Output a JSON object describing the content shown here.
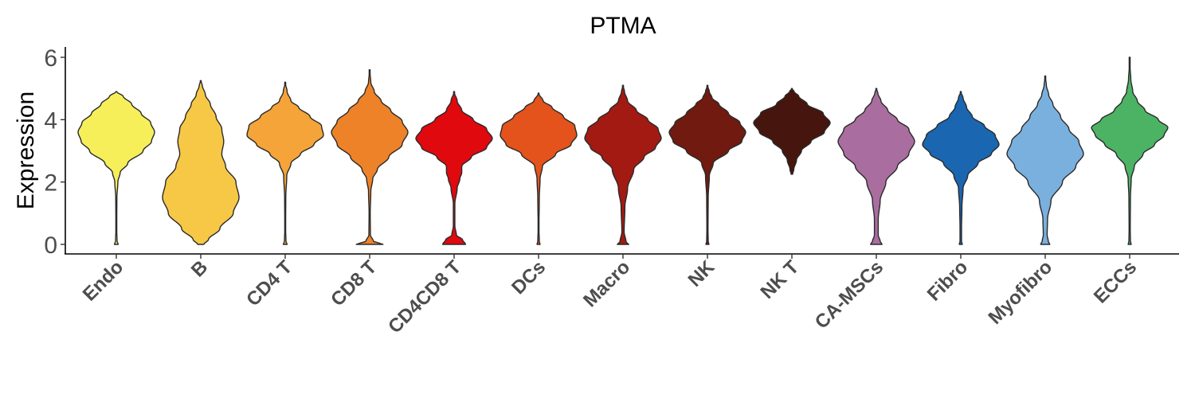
{
  "chart_data": {
    "type": "violin",
    "title": "PTMA",
    "xlabel": "",
    "ylabel": "Expression",
    "ylim": [
      -0.3,
      6.3
    ],
    "yticks": [
      0,
      2,
      4,
      6
    ],
    "grid": false,
    "legend": "none",
    "categories": [
      "Endo",
      "B",
      "CD4 T",
      "CD8 T",
      "CD4CD8 T",
      "DCs",
      "Macro",
      "NK",
      "NK T",
      "CA-MSCs",
      "Fibro",
      "Myofibro",
      "ECCs"
    ],
    "colors": [
      "#F7EF5A",
      "#F7C846",
      "#F4A438",
      "#EE8228",
      "#DF090E",
      "#E3531B",
      "#A21A12",
      "#701A10",
      "#46150D",
      "#A96E9F",
      "#1A66B0",
      "#7AB0DE",
      "#4CB365"
    ],
    "distributions": [
      {
        "name": "Endo",
        "min": 0.0,
        "max": 4.9,
        "profile": [
          [
            0,
            0.05
          ],
          [
            0.1,
            0.02
          ],
          [
            0.5,
            0.01
          ],
          [
            1.5,
            0.015
          ],
          [
            2,
            0.04
          ],
          [
            2.3,
            0.1
          ],
          [
            2.6,
            0.3
          ],
          [
            3.0,
            0.7
          ],
          [
            3.3,
            0.92
          ],
          [
            3.6,
            1.0
          ],
          [
            3.9,
            0.9
          ],
          [
            4.2,
            0.65
          ],
          [
            4.5,
            0.4
          ],
          [
            4.75,
            0.18
          ],
          [
            4.9,
            0
          ]
        ]
      },
      {
        "name": "B",
        "min": 0.0,
        "max": 5.25,
        "profile": [
          [
            0,
            0.08
          ],
          [
            0.15,
            0.2
          ],
          [
            0.5,
            0.5
          ],
          [
            1.0,
            0.85
          ],
          [
            1.5,
            1.0
          ],
          [
            2.0,
            0.92
          ],
          [
            2.5,
            0.65
          ],
          [
            2.9,
            0.55
          ],
          [
            3.3,
            0.6
          ],
          [
            3.7,
            0.55
          ],
          [
            4.1,
            0.4
          ],
          [
            4.5,
            0.25
          ],
          [
            4.8,
            0.12
          ],
          [
            5.1,
            0.04
          ],
          [
            5.25,
            0
          ]
        ]
      },
      {
        "name": "CD4 T",
        "min": 0.0,
        "max": 5.2,
        "profile": [
          [
            0,
            0.05
          ],
          [
            0.1,
            0.02
          ],
          [
            0.5,
            0.01
          ],
          [
            1.5,
            0.015
          ],
          [
            2.2,
            0.04
          ],
          [
            2.6,
            0.15
          ],
          [
            2.9,
            0.4
          ],
          [
            3.2,
            0.75
          ],
          [
            3.5,
            1.0
          ],
          [
            3.8,
            0.95
          ],
          [
            4.1,
            0.65
          ],
          [
            4.4,
            0.35
          ],
          [
            4.6,
            0.15
          ],
          [
            4.9,
            0.05
          ],
          [
            5.2,
            0
          ]
        ]
      },
      {
        "name": "CD8 T",
        "min": 0.0,
        "max": 5.6,
        "profile": [
          [
            0,
            0.35
          ],
          [
            0.1,
            0.1
          ],
          [
            0.3,
            0.02
          ],
          [
            1.0,
            0.015
          ],
          [
            1.7,
            0.03
          ],
          [
            2.1,
            0.08
          ],
          [
            2.4,
            0.2
          ],
          [
            2.8,
            0.5
          ],
          [
            3.2,
            0.85
          ],
          [
            3.6,
            1.0
          ],
          [
            3.95,
            0.85
          ],
          [
            4.3,
            0.55
          ],
          [
            4.6,
            0.3
          ],
          [
            4.9,
            0.12
          ],
          [
            5.2,
            0.03
          ],
          [
            5.6,
            0
          ]
        ]
      },
      {
        "name": "CD4CD8 T",
        "min": 0.0,
        "max": 4.9,
        "profile": [
          [
            0,
            0.3
          ],
          [
            0.15,
            0.22
          ],
          [
            0.3,
            0.06
          ],
          [
            0.6,
            0.02
          ],
          [
            1.3,
            0.02
          ],
          [
            1.8,
            0.08
          ],
          [
            2.1,
            0.15
          ],
          [
            2.3,
            0.2
          ],
          [
            2.5,
            0.2
          ],
          [
            2.8,
            0.45
          ],
          [
            3.1,
            0.85
          ],
          [
            3.4,
            1.0
          ],
          [
            3.7,
            0.85
          ],
          [
            4.0,
            0.5
          ],
          [
            4.3,
            0.2
          ],
          [
            4.6,
            0.08
          ],
          [
            4.9,
            0
          ]
        ]
      },
      {
        "name": "DCs",
        "min": 0.0,
        "max": 4.85,
        "profile": [
          [
            0,
            0.04
          ],
          [
            0.1,
            0.02
          ],
          [
            0.5,
            0.01
          ],
          [
            1.5,
            0.02
          ],
          [
            2.1,
            0.04
          ],
          [
            2.5,
            0.1
          ],
          [
            2.9,
            0.45
          ],
          [
            3.2,
            0.85
          ],
          [
            3.5,
            1.0
          ],
          [
            3.8,
            0.95
          ],
          [
            4.1,
            0.65
          ],
          [
            4.4,
            0.35
          ],
          [
            4.6,
            0.12
          ],
          [
            4.85,
            0
          ]
        ]
      },
      {
        "name": "Macro",
        "min": 0.0,
        "max": 5.1,
        "profile": [
          [
            0,
            0.15
          ],
          [
            0.08,
            0.08
          ],
          [
            0.4,
            0.03
          ],
          [
            1.2,
            0.05
          ],
          [
            1.8,
            0.12
          ],
          [
            2.4,
            0.28
          ],
          [
            2.8,
            0.55
          ],
          [
            3.1,
            0.85
          ],
          [
            3.4,
            1.0
          ],
          [
            3.7,
            0.92
          ],
          [
            4.0,
            0.65
          ],
          [
            4.3,
            0.35
          ],
          [
            4.6,
            0.12
          ],
          [
            4.9,
            0.04
          ],
          [
            5.1,
            0
          ]
        ]
      },
      {
        "name": "NK",
        "min": 0.0,
        "max": 5.1,
        "profile": [
          [
            0,
            0.04
          ],
          [
            0.1,
            0.02
          ],
          [
            0.5,
            0.015
          ],
          [
            1.5,
            0.02
          ],
          [
            2.2,
            0.05
          ],
          [
            2.6,
            0.15
          ],
          [
            3.0,
            0.55
          ],
          [
            3.3,
            0.9
          ],
          [
            3.6,
            1.0
          ],
          [
            3.9,
            0.85
          ],
          [
            4.2,
            0.55
          ],
          [
            4.5,
            0.3
          ],
          [
            4.7,
            0.12
          ],
          [
            4.9,
            0.05
          ],
          [
            5.1,
            0
          ]
        ]
      },
      {
        "name": "NK T",
        "min": 2.25,
        "max": 5.0,
        "profile": [
          [
            2.25,
            0.02
          ],
          [
            2.4,
            0.05
          ],
          [
            2.7,
            0.12
          ],
          [
            3.0,
            0.25
          ],
          [
            3.3,
            0.5
          ],
          [
            3.6,
            0.85
          ],
          [
            3.9,
            1.0
          ],
          [
            4.2,
            0.82
          ],
          [
            4.5,
            0.4
          ],
          [
            4.75,
            0.18
          ],
          [
            4.9,
            0.06
          ],
          [
            5.0,
            0
          ]
        ]
      },
      {
        "name": "CA-MSCs",
        "min": 0.0,
        "max": 5.0,
        "profile": [
          [
            0,
            0.15
          ],
          [
            0.1,
            0.1
          ],
          [
            0.3,
            0.05
          ],
          [
            0.8,
            0.05
          ],
          [
            1.4,
            0.1
          ],
          [
            2.0,
            0.25
          ],
          [
            2.5,
            0.55
          ],
          [
            2.9,
            0.85
          ],
          [
            3.3,
            1.0
          ],
          [
            3.7,
            0.85
          ],
          [
            4.0,
            0.55
          ],
          [
            4.3,
            0.3
          ],
          [
            4.6,
            0.12
          ],
          [
            4.85,
            0.04
          ],
          [
            5.0,
            0
          ]
        ]
      },
      {
        "name": "Fibro",
        "min": 0.0,
        "max": 4.9,
        "profile": [
          [
            0,
            0.04
          ],
          [
            0.1,
            0.02
          ],
          [
            0.5,
            0.02
          ],
          [
            1.2,
            0.03
          ],
          [
            1.8,
            0.06
          ],
          [
            2.2,
            0.18
          ],
          [
            2.6,
            0.45
          ],
          [
            2.9,
            0.8
          ],
          [
            3.2,
            1.0
          ],
          [
            3.5,
            0.9
          ],
          [
            3.8,
            0.62
          ],
          [
            4.1,
            0.3
          ],
          [
            4.4,
            0.15
          ],
          [
            4.7,
            0.06
          ],
          [
            4.9,
            0
          ]
        ]
      },
      {
        "name": "Myofibro",
        "min": 0.0,
        "max": 5.4,
        "profile": [
          [
            0,
            0.12
          ],
          [
            0.1,
            0.08
          ],
          [
            0.3,
            0.05
          ],
          [
            0.8,
            0.06
          ],
          [
            1.4,
            0.15
          ],
          [
            2.0,
            0.45
          ],
          [
            2.5,
            0.8
          ],
          [
            2.9,
            1.0
          ],
          [
            3.3,
            0.88
          ],
          [
            3.7,
            0.62
          ],
          [
            4.1,
            0.4
          ],
          [
            4.5,
            0.2
          ],
          [
            4.8,
            0.09
          ],
          [
            5.1,
            0.03
          ],
          [
            5.4,
            0
          ]
        ]
      },
      {
        "name": "ECCs",
        "min": 0.0,
        "max": 6.0,
        "profile": [
          [
            0,
            0.04
          ],
          [
            0.1,
            0.02
          ],
          [
            0.5,
            0.015
          ],
          [
            1.5,
            0.02
          ],
          [
            2.1,
            0.04
          ],
          [
            2.5,
            0.12
          ],
          [
            2.9,
            0.35
          ],
          [
            3.2,
            0.65
          ],
          [
            3.5,
            0.9
          ],
          [
            3.75,
            1.0
          ],
          [
            4.0,
            0.75
          ],
          [
            4.3,
            0.4
          ],
          [
            4.6,
            0.2
          ],
          [
            4.9,
            0.08
          ],
          [
            5.3,
            0.03
          ],
          [
            5.7,
            0.01
          ],
          [
            6.0,
            0
          ]
        ]
      }
    ]
  }
}
